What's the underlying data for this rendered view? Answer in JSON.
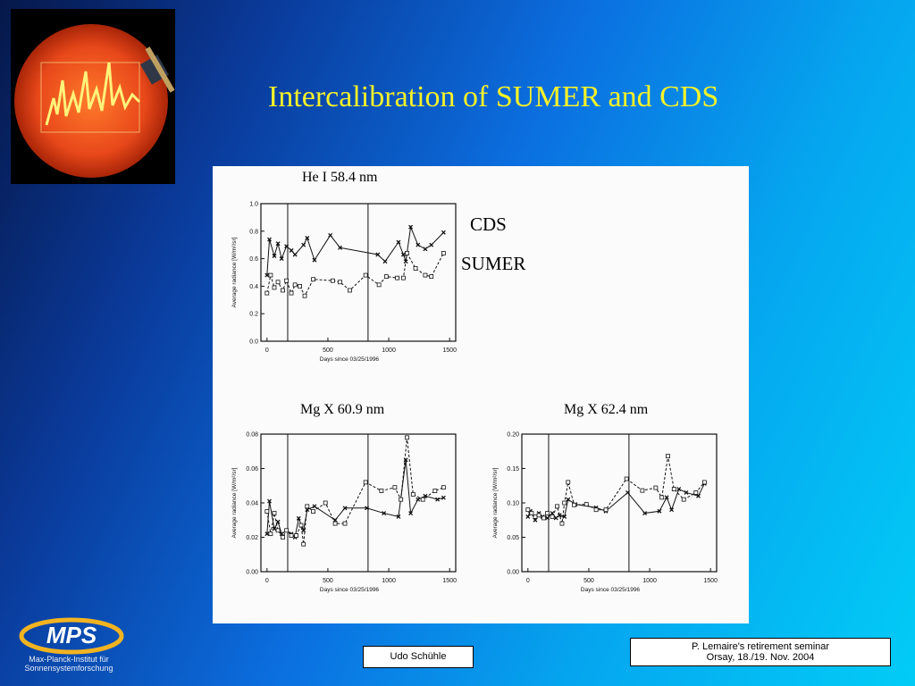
{
  "slide": {
    "title": "Intercalibration of SUMER and CDS"
  },
  "legend": {
    "cds": "CDS",
    "sumer": "SUMER"
  },
  "footer": {
    "author": "Udo Schühle",
    "event_line1": "P. Lemaire's retirement seminar",
    "event_line2": "Orsay, 18./19. Nov. 2004"
  },
  "logo": {
    "text": "MPS",
    "subtitle_line1": "Max-Planck-Institut für",
    "subtitle_line2": "Sonnensystemforschung"
  },
  "colors": {
    "title": "#f6f22a",
    "sun": "#e8481a",
    "logo_ring": "#f2b321"
  },
  "chart_data": [
    {
      "type": "line",
      "title": "He I 58.4 nm",
      "xlabel": "Days since 03/25/1996",
      "ylabel": "Average radiance [W/m²/sr]",
      "xlim": [
        -50,
        1550
      ],
      "ylim": [
        0.0,
        1.0
      ],
      "xticks": [
        0,
        500,
        1000,
        1500
      ],
      "yticks": [
        0.0,
        0.2,
        0.4,
        0.6,
        0.8,
        1.0
      ],
      "ytick_labels": [
        "0.0",
        "0.2",
        "0.4",
        "0.6",
        "0.8",
        "1.0"
      ],
      "vlines": [
        170,
        830
      ],
      "series": [
        {
          "name": "CDS",
          "style": "solid",
          "x": [
            0,
            20,
            60,
            90,
            120,
            160,
            200,
            230,
            300,
            330,
            390,
            520,
            600,
            910,
            970,
            1080,
            1120,
            1140,
            1180,
            1240,
            1300,
            1350,
            1450
          ],
          "y": [
            0.48,
            0.74,
            0.62,
            0.71,
            0.6,
            0.69,
            0.66,
            0.63,
            0.7,
            0.75,
            0.59,
            0.77,
            0.68,
            0.63,
            0.58,
            0.72,
            0.63,
            0.58,
            0.83,
            0.7,
            0.67,
            0.7,
            0.79
          ]
        },
        {
          "name": "SUMER",
          "style": "dashed",
          "x": [
            0,
            30,
            60,
            90,
            130,
            160,
            200,
            230,
            270,
            310,
            380,
            540,
            600,
            680,
            810,
            920,
            980,
            1070,
            1120,
            1150,
            1220,
            1300,
            1350,
            1450
          ],
          "y": [
            0.35,
            0.48,
            0.39,
            0.43,
            0.37,
            0.44,
            0.35,
            0.41,
            0.4,
            0.33,
            0.45,
            0.44,
            0.43,
            0.37,
            0.48,
            0.41,
            0.47,
            0.46,
            0.46,
            0.64,
            0.53,
            0.48,
            0.47,
            0.64
          ]
        }
      ]
    },
    {
      "type": "line",
      "title": "Mg X 60.9 nm",
      "xlabel": "Days since 03/25/1996",
      "ylabel": "Average radiance [W/m²/sr]",
      "xlim": [
        -50,
        1550
      ],
      "ylim": [
        0.0,
        0.08
      ],
      "xticks": [
        0,
        500,
        1000,
        1500
      ],
      "yticks": [
        0.0,
        0.02,
        0.04,
        0.06,
        0.08
      ],
      "ytick_labels": [
        "0.00",
        "0.02",
        "0.04",
        "0.06",
        "0.08"
      ],
      "vlines": [
        170,
        830
      ],
      "series": [
        {
          "name": "CDS",
          "style": "solid",
          "x": [
            0,
            20,
            60,
            90,
            120,
            160,
            200,
            230,
            260,
            300,
            330,
            390,
            560,
            640,
            820,
            960,
            1080,
            1140,
            1180,
            1240,
            1300,
            1400,
            1450
          ],
          "y": [
            0.022,
            0.041,
            0.025,
            0.029,
            0.022,
            0.024,
            0.022,
            0.02,
            0.031,
            0.024,
            0.036,
            0.038,
            0.03,
            0.037,
            0.037,
            0.034,
            0.032,
            0.065,
            0.034,
            0.042,
            0.044,
            0.042,
            0.043
          ]
        },
        {
          "name": "SUMER",
          "style": "dashed",
          "x": [
            0,
            30,
            60,
            90,
            130,
            160,
            200,
            240,
            280,
            300,
            330,
            380,
            480,
            560,
            640,
            810,
            940,
            1050,
            1100,
            1150,
            1200,
            1280,
            1380,
            1450
          ],
          "y": [
            0.035,
            0.022,
            0.034,
            0.024,
            0.02,
            0.024,
            0.021,
            0.021,
            0.027,
            0.016,
            0.038,
            0.035,
            0.04,
            0.028,
            0.028,
            0.052,
            0.047,
            0.049,
            0.042,
            0.078,
            0.045,
            0.042,
            0.047,
            0.049
          ]
        }
      ]
    },
    {
      "type": "line",
      "title": "Mg X 62.4 nm",
      "xlabel": "Days since 03/25/1996",
      "ylabel": "Average radiance [W/m²/sr]",
      "xlim": [
        -50,
        1550
      ],
      "ylim": [
        0.0,
        0.2
      ],
      "xticks": [
        0,
        500,
        1000,
        1500
      ],
      "yticks": [
        0.0,
        0.05,
        0.1,
        0.15,
        0.2
      ],
      "ytick_labels": [
        "0.00",
        "0.05",
        "0.10",
        "0.15",
        "0.20"
      ],
      "vlines": [
        170,
        830
      ],
      "series": [
        {
          "name": "CDS",
          "style": "solid",
          "x": [
            0,
            20,
            60,
            90,
            120,
            160,
            200,
            230,
            260,
            300,
            330,
            390,
            560,
            640,
            820,
            960,
            1080,
            1140,
            1180,
            1240,
            1300,
            1400,
            1450
          ],
          "y": [
            0.08,
            0.088,
            0.075,
            0.085,
            0.08,
            0.078,
            0.085,
            0.078,
            0.082,
            0.08,
            0.105,
            0.098,
            0.093,
            0.088,
            0.115,
            0.085,
            0.088,
            0.108,
            0.09,
            0.12,
            0.115,
            0.11,
            0.128
          ]
        },
        {
          "name": "SUMER",
          "style": "dashed",
          "x": [
            0,
            30,
            60,
            90,
            130,
            160,
            200,
            240,
            280,
            300,
            330,
            380,
            480,
            560,
            640,
            810,
            940,
            1050,
            1100,
            1150,
            1200,
            1280,
            1380,
            1450
          ],
          "y": [
            0.09,
            0.085,
            0.08,
            0.082,
            0.078,
            0.085,
            0.08,
            0.095,
            0.07,
            0.1,
            0.13,
            0.097,
            0.098,
            0.09,
            0.09,
            0.135,
            0.118,
            0.122,
            0.108,
            0.168,
            0.12,
            0.105,
            0.115,
            0.13
          ]
        }
      ]
    }
  ]
}
